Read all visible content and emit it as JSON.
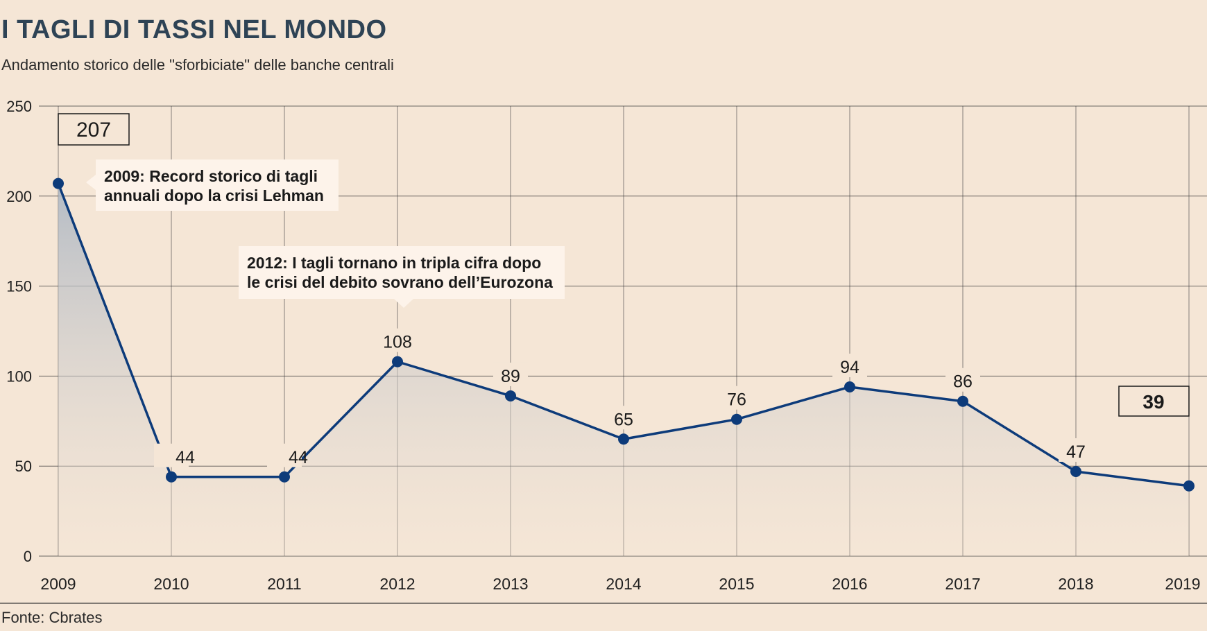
{
  "title": "I TAGLI DI TASSI NEL MONDO",
  "subtitle": "Andamento storico delle \"sforbiciate\" delle banche centrali",
  "source": "Fonte: Cbrates",
  "colors": {
    "background": "#f5e6d6",
    "line": "#0d3b7a",
    "grid": "#3a3a3a",
    "callout_bg": "#fdf3ea"
  },
  "chart_data": {
    "type": "area",
    "title": "I TAGLI DI TASSI NEL MONDO",
    "subtitle": "Andamento storico delle \"sforbiciate\" delle banche centrali",
    "xlabel": "",
    "ylabel": "",
    "categories": [
      "2009",
      "2010",
      "2011",
      "2012",
      "2013",
      "2014",
      "2015",
      "2016",
      "2017",
      "2018",
      "2019"
    ],
    "values": [
      207,
      44,
      44,
      108,
      89,
      65,
      76,
      94,
      86,
      47,
      39
    ],
    "point_labels": [
      "207",
      "44",
      "44",
      "108",
      "89",
      "65",
      "76",
      "94",
      "86",
      "47",
      "39"
    ],
    "boxed_labels": [
      "207",
      "39"
    ],
    "ylim": [
      0,
      250
    ],
    "yticks": [
      0,
      50,
      100,
      150,
      200,
      250
    ],
    "grid": true,
    "annotations": [
      {
        "year": "2009",
        "text": [
          "2009: Record storico di tagli",
          "annuali dopo la crisi Lehman"
        ]
      },
      {
        "year": "2012",
        "text": [
          "2012: I tagli tornano in tripla cifra dopo",
          "le crisi del debito sovrano dell’Eurozona"
        ]
      }
    ]
  }
}
